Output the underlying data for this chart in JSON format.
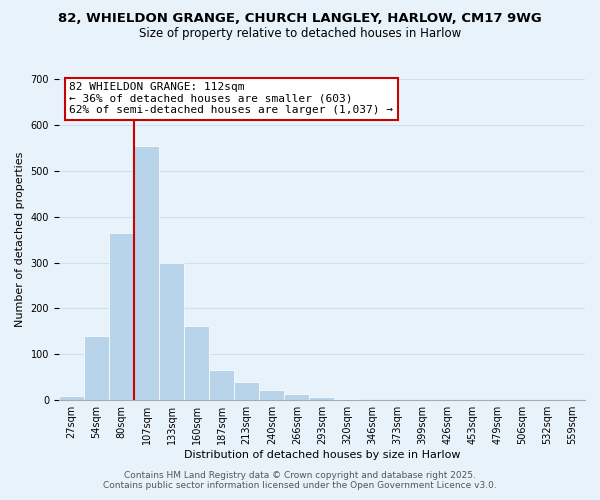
{
  "title_line1": "82, WHIELDON GRANGE, CHURCH LANGLEY, HARLOW, CM17 9WG",
  "title_line2": "Size of property relative to detached houses in Harlow",
  "xlabel": "Distribution of detached houses by size in Harlow",
  "ylabel": "Number of detached properties",
  "bar_values": [
    10,
    140,
    365,
    555,
    300,
    162,
    65,
    40,
    22,
    13,
    8,
    3,
    0,
    0,
    0,
    0,
    0,
    0,
    0,
    0,
    0
  ],
  "bin_labels": [
    "27sqm",
    "54sqm",
    "80sqm",
    "107sqm",
    "133sqm",
    "160sqm",
    "187sqm",
    "213sqm",
    "240sqm",
    "266sqm",
    "293sqm",
    "320sqm",
    "346sqm",
    "373sqm",
    "399sqm",
    "426sqm",
    "453sqm",
    "479sqm",
    "506sqm",
    "532sqm",
    "559sqm"
  ],
  "bar_color": "#b8d4ea",
  "grid_color": "#cde0f0",
  "background_color": "#e8f2fa",
  "annotation_box_color": "#ffffff",
  "annotation_border_color": "#cc0000",
  "vline_color": "#cc0000",
  "vline_bin_index": 3,
  "ylim": [
    0,
    700
  ],
  "yticks": [
    0,
    100,
    200,
    300,
    400,
    500,
    600,
    700
  ],
  "annotation_text_line1": "82 WHIELDON GRANGE: 112sqm",
  "annotation_text_line2": "← 36% of detached houses are smaller (603)",
  "annotation_text_line3": "62% of semi-detached houses are larger (1,037) →",
  "footer_line1": "Contains HM Land Registry data © Crown copyright and database right 2025.",
  "footer_line2": "Contains public sector information licensed under the Open Government Licence v3.0.",
  "title_fontsize": 9.5,
  "subtitle_fontsize": 8.5,
  "axis_label_fontsize": 8,
  "tick_fontsize": 7,
  "annotation_fontsize": 8,
  "footer_fontsize": 6.5
}
